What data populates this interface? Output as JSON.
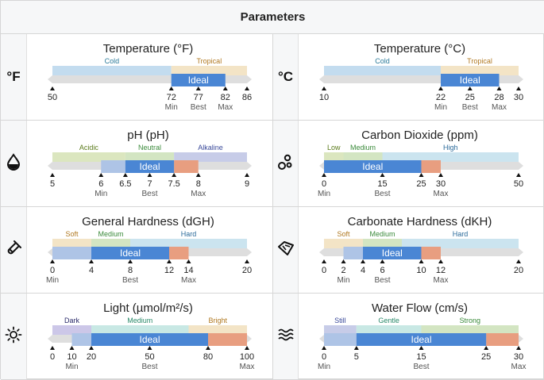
{
  "header": {
    "title": "Parameters"
  },
  "colors": {
    "track": "#dedede",
    "ideal": "#4a86d4",
    "minband": "#aec4e6",
    "maxband": "#e89e80",
    "zones": {
      "blue": "#c3dcef",
      "gold": "#f3e4c6",
      "green": "#dbe6bf",
      "lime": "#d3e5c2",
      "indigo": "#c7cce8",
      "purple": "#ccc7e8",
      "teal": "#c8e8e4",
      "cyan": "#cbe4ef"
    },
    "zone_text": {
      "blue": "#2b7a9a",
      "gold": "#b07820",
      "green": "#5a7a1a",
      "lime": "#3a8a3a",
      "indigo": "#3a4a9a",
      "purple": "#2a2a6a",
      "teal": "#2a8a6a",
      "cyan": "#2a6a9a"
    }
  },
  "ideal_label": "Ideal",
  "rows": [
    [
      {
        "icon": "fahrenheit-icon",
        "icon_text": "°F",
        "title": "Temperature (°F)",
        "range": [
          50,
          86
        ],
        "zones": [
          {
            "label": "Cold",
            "from": 50,
            "to": 72,
            "color": "blue"
          },
          {
            "label": "Tropical",
            "from": 72,
            "to": 86,
            "color": "gold"
          }
        ],
        "bands": {
          "lower": null,
          "ideal": [
            72,
            82
          ],
          "upper": null
        },
        "ticks": [
          {
            "v": 50
          },
          {
            "v": 72,
            "label": "Min"
          },
          {
            "v": 77,
            "label": "Best"
          },
          {
            "v": 82,
            "label": "Max"
          },
          {
            "v": 86
          }
        ]
      },
      {
        "icon": "celsius-icon",
        "icon_text": "°C",
        "title": "Temperature (°C)",
        "range": [
          10,
          30
        ],
        "zones": [
          {
            "label": "Cold",
            "from": 10,
            "to": 22,
            "color": "blue"
          },
          {
            "label": "Tropical",
            "from": 22,
            "to": 30,
            "color": "gold"
          }
        ],
        "bands": {
          "lower": null,
          "ideal": [
            22,
            28
          ],
          "upper": null
        },
        "ticks": [
          {
            "v": 10
          },
          {
            "v": 22,
            "label": "Min"
          },
          {
            "v": 25,
            "label": "Best"
          },
          {
            "v": 28,
            "label": "Max"
          },
          {
            "v": 30
          }
        ]
      }
    ],
    [
      {
        "icon": "water-drop-icon",
        "title": "pH (pH)",
        "range": [
          5,
          9
        ],
        "zones": [
          {
            "label": "Acidic",
            "from": 5,
            "to": 6.5,
            "color": "green"
          },
          {
            "label": "Neutral",
            "from": 6.5,
            "to": 7.5,
            "color": "lime"
          },
          {
            "label": "Alkaline",
            "from": 7.5,
            "to": 9,
            "color": "indigo"
          }
        ],
        "bands": {
          "lower": [
            6,
            6.5
          ],
          "ideal": [
            6.5,
            7.5
          ],
          "upper": [
            7.5,
            8
          ]
        },
        "ticks": [
          {
            "v": 5
          },
          {
            "v": 6,
            "label": "Min"
          },
          {
            "v": 6.5
          },
          {
            "v": 7,
            "label": "Best"
          },
          {
            "v": 7.5
          },
          {
            "v": 8,
            "label": "Max"
          },
          {
            "v": 9
          }
        ]
      },
      {
        "icon": "bubbles-icon",
        "title": "Carbon Dioxide (ppm)",
        "range": [
          0,
          50
        ],
        "zones": [
          {
            "label": "Low",
            "from": 0,
            "to": 5,
            "color": "green"
          },
          {
            "label": "Medium",
            "from": 5,
            "to": 15,
            "color": "lime"
          },
          {
            "label": "High",
            "from": 15,
            "to": 50,
            "color": "cyan"
          }
        ],
        "bands": {
          "lower": null,
          "ideal": [
            0,
            25
          ],
          "upper": [
            25,
            30
          ]
        },
        "ticks": [
          {
            "v": 0,
            "label": "Min"
          },
          {
            "v": 15,
            "label": "Best"
          },
          {
            "v": 25
          },
          {
            "v": 30,
            "label": "Max"
          },
          {
            "v": 50
          }
        ]
      }
    ],
    [
      {
        "icon": "test-tube-icon",
        "title": "General Hardness (dGH)",
        "range": [
          0,
          20
        ],
        "zones": [
          {
            "label": "Soft",
            "from": 0,
            "to": 4,
            "color": "gold"
          },
          {
            "label": "Medium",
            "from": 4,
            "to": 8,
            "color": "lime"
          },
          {
            "label": "Hard",
            "from": 8,
            "to": 20,
            "color": "cyan"
          }
        ],
        "bands": {
          "lower": [
            0,
            4
          ],
          "ideal": [
            4,
            12
          ],
          "upper": [
            12,
            14
          ]
        },
        "ticks": [
          {
            "v": 0,
            "label": "Min"
          },
          {
            "v": 4
          },
          {
            "v": 8,
            "label": "Best"
          },
          {
            "v": 12
          },
          {
            "v": 14,
            "label": "Max"
          },
          {
            "v": 20
          }
        ]
      },
      {
        "icon": "gem-icon",
        "title": "Carbonate Hardness (dKH)",
        "range": [
          0,
          20
        ],
        "zones": [
          {
            "label": "Soft",
            "from": 0,
            "to": 4,
            "color": "gold"
          },
          {
            "label": "Medium",
            "from": 4,
            "to": 8,
            "color": "lime"
          },
          {
            "label": "Hard",
            "from": 8,
            "to": 20,
            "color": "cyan"
          }
        ],
        "bands": {
          "lower": [
            2,
            4
          ],
          "ideal": [
            4,
            10
          ],
          "upper": [
            10,
            12
          ]
        },
        "ticks": [
          {
            "v": 0
          },
          {
            "v": 2,
            "label": "Min"
          },
          {
            "v": 4
          },
          {
            "v": 6,
            "label": "Best"
          },
          {
            "v": 10
          },
          {
            "v": 12,
            "label": "Max"
          },
          {
            "v": 20
          }
        ]
      }
    ],
    [
      {
        "icon": "sun-icon",
        "title": "Light (µmol/m²/s)",
        "range": [
          0,
          100
        ],
        "zones": [
          {
            "label": "Dark",
            "from": 0,
            "to": 20,
            "color": "purple"
          },
          {
            "label": "Medium",
            "from": 20,
            "to": 70,
            "color": "teal"
          },
          {
            "label": "Bright",
            "from": 70,
            "to": 100,
            "color": "gold"
          }
        ],
        "bands": {
          "lower": [
            10,
            20
          ],
          "ideal": [
            20,
            80
          ],
          "upper": [
            80,
            100
          ]
        },
        "ticks": [
          {
            "v": 0
          },
          {
            "v": 10,
            "label": "Min"
          },
          {
            "v": 20
          },
          {
            "v": 50,
            "label": "Best"
          },
          {
            "v": 80
          },
          {
            "v": 100,
            "label": "Max"
          }
        ]
      },
      {
        "icon": "waves-icon",
        "title": "Water Flow (cm/s)",
        "range": [
          0,
          30
        ],
        "zones": [
          {
            "label": "Still",
            "from": 0,
            "to": 5,
            "color": "indigo"
          },
          {
            "label": "Gentle",
            "from": 5,
            "to": 15,
            "color": "teal"
          },
          {
            "label": "Strong",
            "from": 15,
            "to": 30,
            "color": "lime"
          }
        ],
        "bands": {
          "lower": [
            0,
            5
          ],
          "ideal": [
            5,
            25
          ],
          "upper": [
            25,
            30
          ]
        },
        "ticks": [
          {
            "v": 0,
            "label": "Min"
          },
          {
            "v": 5
          },
          {
            "v": 15,
            "label": "Best"
          },
          {
            "v": 25
          },
          {
            "v": 30,
            "label": "Max"
          }
        ]
      }
    ]
  ]
}
